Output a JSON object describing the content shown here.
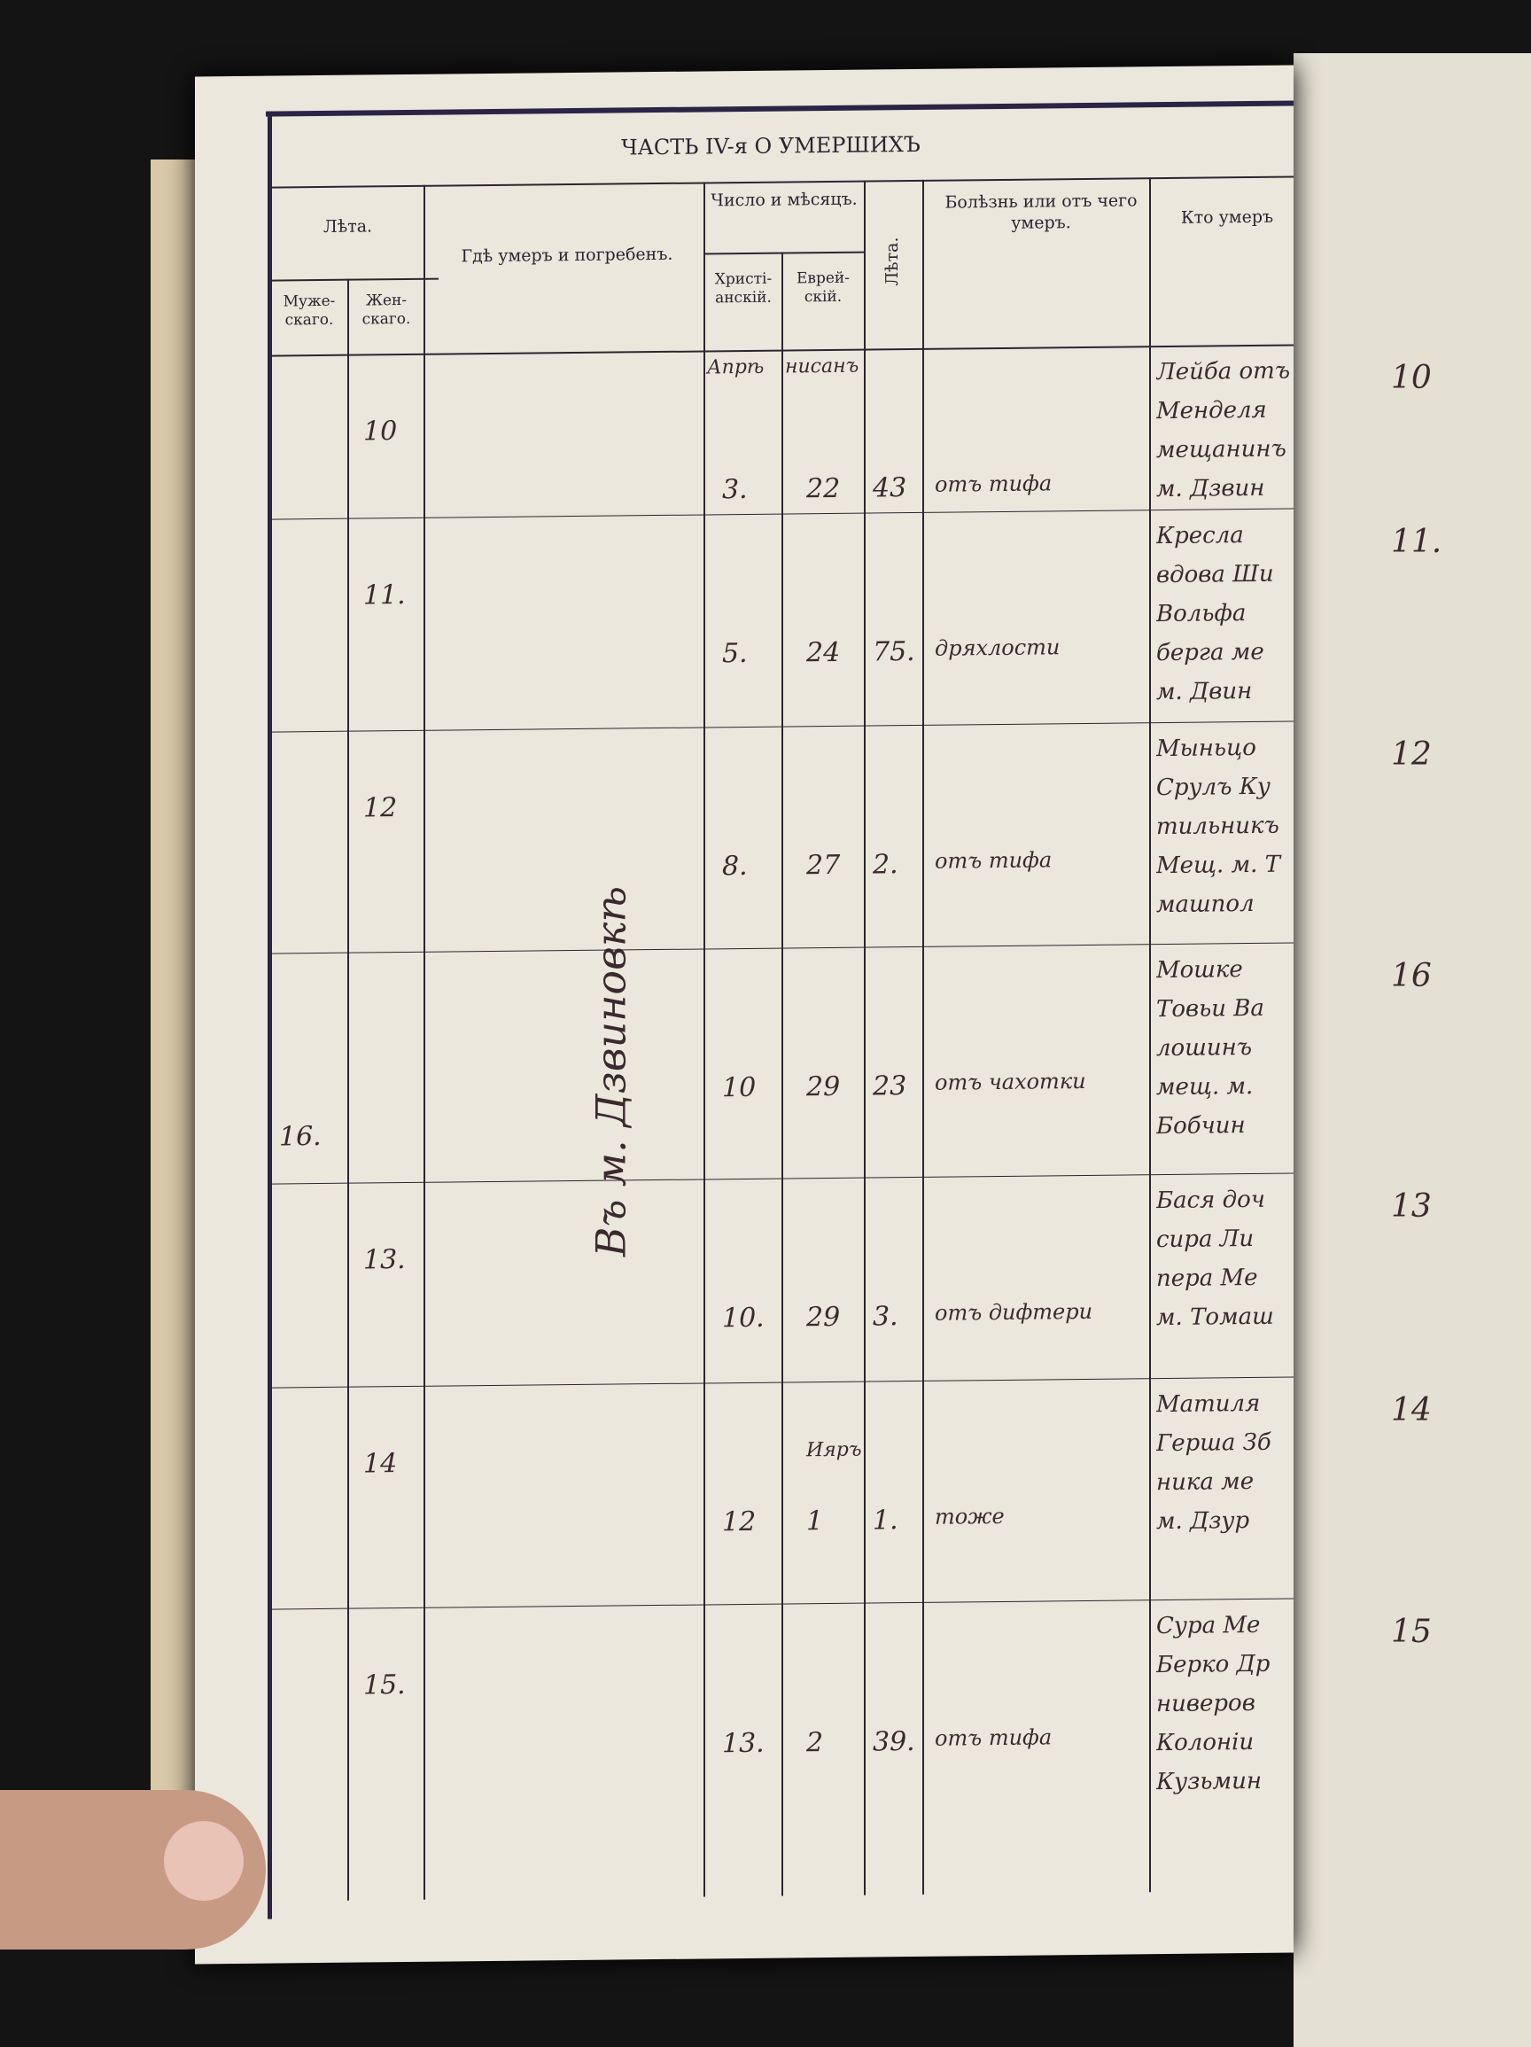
{
  "page_title": "ЧАСТЬ IV-я О УМЕРШИХЪ",
  "headers": {
    "age": "Лѣта.",
    "male": "Муже-скаго.",
    "female": "Жен-скаго.",
    "place": "Гдѣ умеръ и погребенъ.",
    "date": "Число и мѣсяцъ.",
    "christian": "Христі-анскій.",
    "jewish": "Еврей-скій.",
    "age2": "Лѣта.",
    "cause": "Болѣзнь или отъ чего умеръ.",
    "who": "Кто умеръ"
  },
  "place_vertical": "Въ м. Дзвиновкѣ",
  "month_labels": {
    "christian": "Апрѣ",
    "jewish": "нисанъ",
    "jewish_row6": "Ияръ"
  },
  "rows": [
    {
      "male": "",
      "female": "10",
      "christian": "3.",
      "jewish": "22",
      "age": "43",
      "cause": "отъ тифа",
      "who": [
        "Лейба отъ",
        "Менделя",
        "мещанинъ",
        "м. Дзвин"
      ],
      "right_no": "10"
    },
    {
      "male": "",
      "female": "11.",
      "christian": "5.",
      "jewish": "24",
      "age": "75.",
      "cause": "дряхлости",
      "who": [
        "Кресла",
        "вдова Ши",
        "Вольфа",
        "берга ме",
        "м. Двин"
      ],
      "right_no": "11."
    },
    {
      "male": "",
      "female": "12",
      "christian": "8.",
      "jewish": "27",
      "age": "2.",
      "cause": "отъ тифа",
      "who": [
        "Мыньцо",
        "Срулъ Ку",
        "тильникъ",
        "Мещ. м. Т",
        "машпол"
      ],
      "right_no": "12"
    },
    {
      "male": "16.",
      "female": "",
      "christian": "10",
      "jewish": "29",
      "age": "23",
      "cause": "отъ чахотки",
      "who": [
        "Мошке",
        "Товьи Ва",
        "лошинъ",
        "мещ. м.",
        "Бобчин"
      ],
      "right_no": "16"
    },
    {
      "male": "",
      "female": "13.",
      "christian": "10.",
      "jewish": "29",
      "age": "3.",
      "cause": "отъ дифтери",
      "who": [
        "Бася доч",
        "сира Ли",
        "пера Ме",
        "м. Томаш"
      ],
      "right_no": "13"
    },
    {
      "male": "",
      "female": "14",
      "christian": "12",
      "jewish": "1",
      "age": "1.",
      "cause": "тоже",
      "who": [
        "Матиля",
        "Герша Зб",
        "ника ме",
        "м. Дзур"
      ],
      "right_no": "14"
    },
    {
      "male": "",
      "female": "15.",
      "christian": "13.",
      "jewish": "2",
      "age": "39.",
      "cause": "отъ тифа",
      "who": [
        "Сура Ме",
        "Берко Др",
        "ниверов",
        "Колоніи",
        "Кузьмин"
      ],
      "right_no": "15"
    }
  ],
  "colors": {
    "paper": "#ece7dc",
    "ink": "#3a2a2e",
    "rule": "#2a2630",
    "background": "#141414"
  }
}
